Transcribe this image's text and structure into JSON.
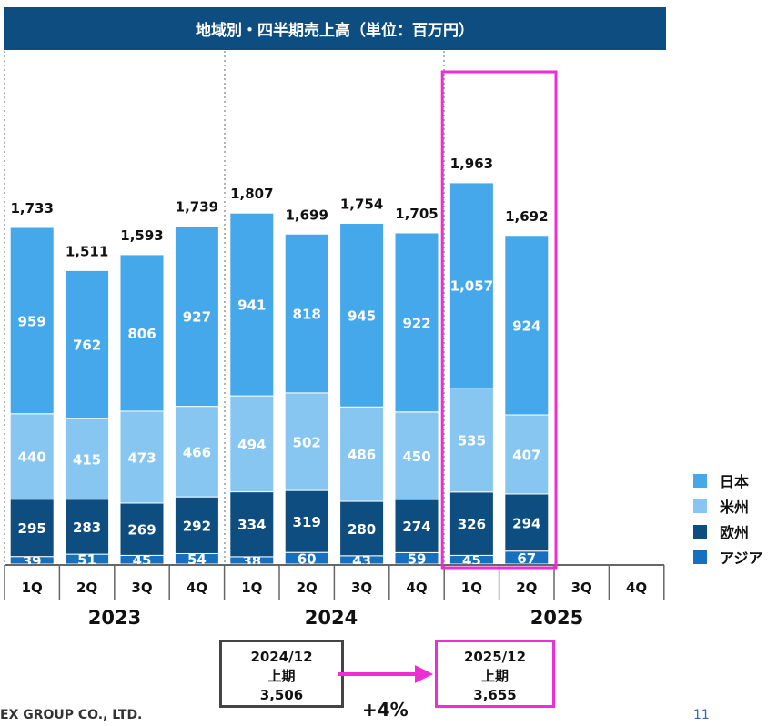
{
  "header": {
    "title": "地域別・四半期売上高（単位：百万円）"
  },
  "colors": {
    "japan": "#45a8ea",
    "americas": "#86c6f1",
    "europe": "#0d4d80",
    "asia": "#1670bd",
    "highlight": "#ee2dd4"
  },
  "chart_data": {
    "type": "bar",
    "stacked": true,
    "title": "地域別・四半期売上高（単位：百万円）",
    "quarters": [
      "1Q",
      "2Q",
      "3Q",
      "4Q",
      "1Q",
      "2Q",
      "3Q",
      "4Q",
      "1Q",
      "2Q",
      "3Q",
      "4Q"
    ],
    "years": [
      "2023",
      "2024",
      "2025"
    ],
    "series": [
      {
        "name": "アジア",
        "color": "#1670bd",
        "values": [
          39,
          51,
          45,
          54,
          38,
          60,
          43,
          59,
          45,
          67,
          null,
          null
        ],
        "labels": [
          "39",
          "51",
          "45",
          "54",
          "38",
          "60",
          "43",
          "59",
          "45",
          "67",
          "",
          ""
        ]
      },
      {
        "name": "欧州",
        "color": "#0d4d80",
        "values": [
          295,
          283,
          269,
          292,
          334,
          319,
          280,
          274,
          326,
          294,
          null,
          null
        ],
        "labels": [
          "295",
          "283",
          "269",
          "292",
          "334",
          "319",
          "280",
          "274",
          "326",
          "294",
          "",
          ""
        ]
      },
      {
        "name": "米州",
        "color": "#86c6f1",
        "values": [
          440,
          415,
          473,
          466,
          494,
          502,
          486,
          450,
          535,
          407,
          null,
          null
        ],
        "labels": [
          "440",
          "415",
          "473",
          "466",
          "494",
          "502",
          "486",
          "450",
          "535",
          "407",
          "",
          ""
        ]
      },
      {
        "name": "日本",
        "color": "#45a8ea",
        "values": [
          959,
          762,
          806,
          927,
          941,
          818,
          945,
          922,
          1057,
          924,
          null,
          null
        ],
        "labels": [
          "959",
          "762",
          "806",
          "927",
          "941",
          "818",
          "945",
          "922",
          "1,057",
          "924",
          "",
          ""
        ]
      }
    ],
    "totals": [
      1733,
      1511,
      1593,
      1739,
      1807,
      1699,
      1754,
      1705,
      1963,
      1692,
      null,
      null
    ],
    "total_labels": [
      "1,733",
      "1,511",
      "1,593",
      "1,739",
      "1,807",
      "1,699",
      "1,754",
      "1,705",
      "1,963",
      "1,692",
      "",
      ""
    ],
    "legend": [
      "日本",
      "米州",
      "欧州",
      "アジア"
    ],
    "legend_position": "right",
    "highlight_range": [
      8,
      9
    ]
  },
  "summary": {
    "previous": {
      "period": "2024/12",
      "half": "上期",
      "value": "3,506"
    },
    "current": {
      "period": "2025/12",
      "half": "上期",
      "value": "3,655"
    },
    "growth": "+4%"
  },
  "footer": {
    "company": "EX GROUP CO., LTD.",
    "page": "11"
  }
}
